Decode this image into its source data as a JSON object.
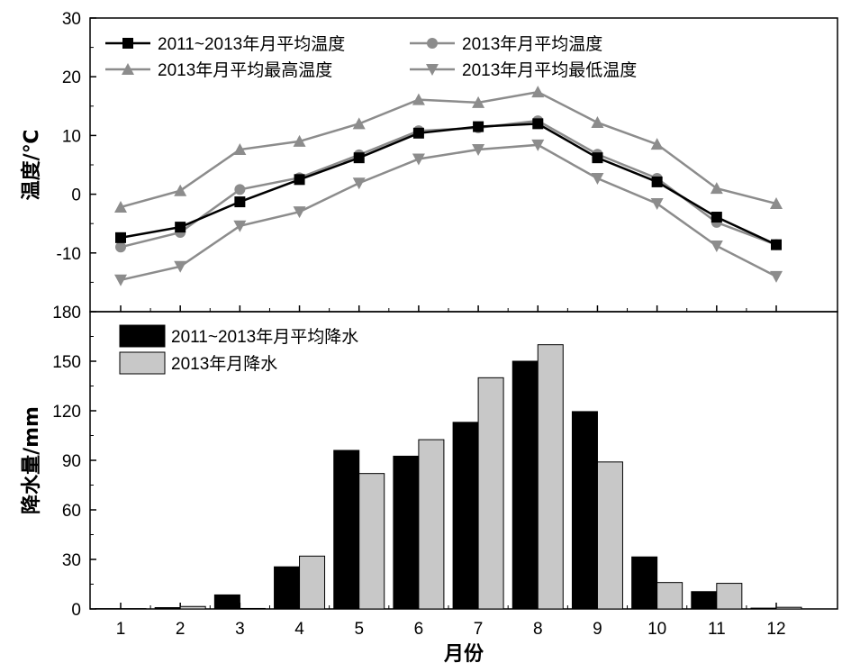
{
  "chart_data": [
    {
      "type": "line",
      "ylabel": "温度/℃",
      "ylim": [
        -20,
        30
      ],
      "yticks": [
        -10,
        0,
        10,
        20,
        30
      ],
      "x": [
        1,
        2,
        3,
        4,
        5,
        6,
        7,
        8,
        9,
        10,
        11,
        12
      ],
      "legend": "top-left",
      "series": [
        {
          "name": "2011~2013年月平均温度",
          "marker": "square",
          "color": "#000000",
          "values": [
            -7.4,
            -5.6,
            -1.3,
            2.5,
            6.2,
            10.4,
            11.5,
            12.0,
            6.2,
            2.1,
            -3.9,
            -8.6
          ]
        },
        {
          "name": "2013年月平均温度",
          "marker": "circle",
          "color": "#8c8c8c",
          "values": [
            -9.0,
            -6.5,
            0.8,
            2.8,
            6.7,
            10.8,
            11.3,
            12.5,
            6.8,
            2.7,
            -4.8,
            -8.6
          ]
        },
        {
          "name": "2013年月平均最高温度",
          "marker": "triangle-up",
          "color": "#8c8c8c",
          "values": [
            -2.2,
            0.6,
            7.6,
            9.0,
            12.0,
            16.1,
            15.6,
            17.4,
            12.2,
            8.5,
            1.0,
            -1.6
          ]
        },
        {
          "name": "2013年月平均最低温度",
          "marker": "triangle-down",
          "color": "#8c8c8c",
          "values": [
            -14.6,
            -12.3,
            -5.4,
            -3.0,
            1.9,
            6.0,
            7.6,
            8.4,
            2.7,
            -1.6,
            -8.8,
            -14.0
          ]
        }
      ]
    },
    {
      "type": "bar",
      "ylabel": "降水量/mm",
      "xlabel": "月份",
      "ylim": [
        0,
        180
      ],
      "yticks": [
        0,
        30,
        60,
        90,
        120,
        150,
        180
      ],
      "categories": [
        "1",
        "2",
        "3",
        "4",
        "5",
        "6",
        "7",
        "8",
        "9",
        "10",
        "11",
        "12"
      ],
      "legend": "top-left",
      "series": [
        {
          "name": "2011~2013年月平均降水",
          "color": "#000000",
          "values": [
            0.2,
            0.8,
            8.5,
            25.5,
            96.0,
            92.5,
            113.0,
            150.0,
            119.5,
            31.5,
            10.5,
            0.5
          ]
        },
        {
          "name": "2013年月降水",
          "color": "#c8c8c8",
          "values": [
            0.2,
            1.5,
            0.3,
            32.0,
            82.0,
            102.5,
            140.0,
            160.0,
            89.0,
            16.0,
            15.5,
            1.0
          ]
        }
      ]
    }
  ]
}
